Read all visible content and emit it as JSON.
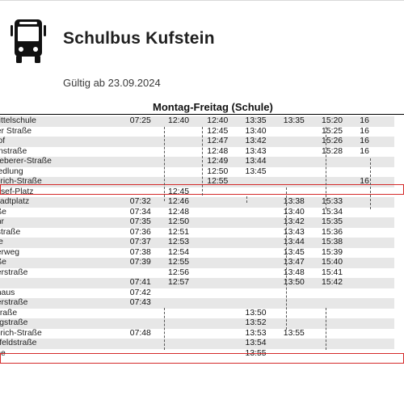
{
  "header": {
    "icon": "bus-icon",
    "title": "Schulbus Kufstein",
    "validity": "Gültig ab 23.09.2024"
  },
  "schedule": {
    "day_header": "Montag-Freitag (Schule)",
    "rows": [
      {
        "stop": "Mittelschule",
        "times": [
          "07:25",
          "12:40",
          "12:40",
          "13:35",
          "13:35",
          "15:20",
          "16"
        ]
      },
      {
        "stop": "ger Straße",
        "times": [
          "",
          "",
          "12:45",
          "13:40",
          "",
          "15:25",
          "16"
        ]
      },
      {
        "stop": "Hof",
        "times": [
          "",
          "",
          "12:47",
          "13:42",
          "",
          "15:26",
          "16"
        ]
      },
      {
        "stop": "einstraße",
        "times": [
          "",
          "",
          "12:48",
          "13:43",
          "",
          "15:28",
          "16"
        ]
      },
      {
        "stop": "Sieberer-Straße",
        "times": [
          "",
          "",
          "12:49",
          "13:44",
          "",
          "",
          ""
        ]
      },
      {
        "stop": "siedlung",
        "times": [
          "",
          "",
          "12:50",
          "13:45",
          "",
          "",
          ""
        ]
      },
      {
        "stop": "-Erich-Straße",
        "times": [
          "",
          "",
          "12:55",
          "",
          "",
          "",
          "16"
        ]
      },
      {
        "stop": "Josef-Platz",
        "times": [
          "",
          "12:45",
          "",
          "",
          "",
          "",
          ""
        ]
      },
      {
        "stop": "Stadtplatz",
        "times": [
          "07:32",
          "12:46",
          "",
          "",
          "13:38",
          "15:33",
          ""
        ]
      },
      {
        "stop": "aße",
        "times": [
          "07:34",
          "12:48",
          "",
          "",
          "13:40",
          "15:34",
          ""
        ]
      },
      {
        "stop": "ehr",
        "times": [
          "07:35",
          "12:50",
          "",
          "",
          "13:42",
          "15:35",
          ""
        ]
      },
      {
        "stop": "hstraße",
        "times": [
          "07:36",
          "12:51",
          "",
          "",
          "13:43",
          "15:36",
          ""
        ]
      },
      {
        "stop": "itte",
        "times": [
          "07:37",
          "12:53",
          "",
          "",
          "13:44",
          "15:38",
          ""
        ]
      },
      {
        "stop": "berweg",
        "times": [
          "07:38",
          "12:54",
          "",
          "",
          "13:45",
          "15:39",
          ""
        ]
      },
      {
        "stop": "aße",
        "times": [
          "07:39",
          "12:55",
          "",
          "",
          "13:47",
          "15:40",
          ""
        ]
      },
      {
        "stop": "gerstraße",
        "times": [
          "",
          "12:56",
          "",
          "",
          "13:48",
          "15:41",
          ""
        ]
      },
      {
        "stop": "",
        "times": [
          "07:41",
          "12:57",
          "",
          "",
          "13:50",
          "15:42",
          ""
        ]
      },
      {
        "stop": "nhaus",
        "times": [
          "07:42",
          "",
          "",
          "",
          "",
          "",
          ""
        ]
      },
      {
        "stop": "gerstraße",
        "times": [
          "07:43",
          "",
          "",
          "",
          "",
          "",
          ""
        ]
      },
      {
        "stop": "Straße",
        "times": [
          "",
          "",
          "",
          "13:50",
          "",
          "",
          ""
        ]
      },
      {
        "stop": "urgstraße",
        "times": [
          "",
          "",
          "",
          "13:52",
          "",
          "",
          ""
        ]
      },
      {
        "stop": "-Erich-Straße",
        "times": [
          "07:48",
          "",
          "",
          "13:53",
          "13:55",
          "",
          ""
        ]
      },
      {
        "stop": "erfeldstraße",
        "times": [
          "",
          "",
          "",
          "13:54",
          "",
          "",
          ""
        ]
      },
      {
        "stop": "che",
        "times": [
          "",
          "",
          "",
          "13:55",
          "",
          "",
          ""
        ]
      }
    ]
  },
  "colors": {
    "highlight": "#d42a2a",
    "row_shade": "#e7e7e7"
  }
}
